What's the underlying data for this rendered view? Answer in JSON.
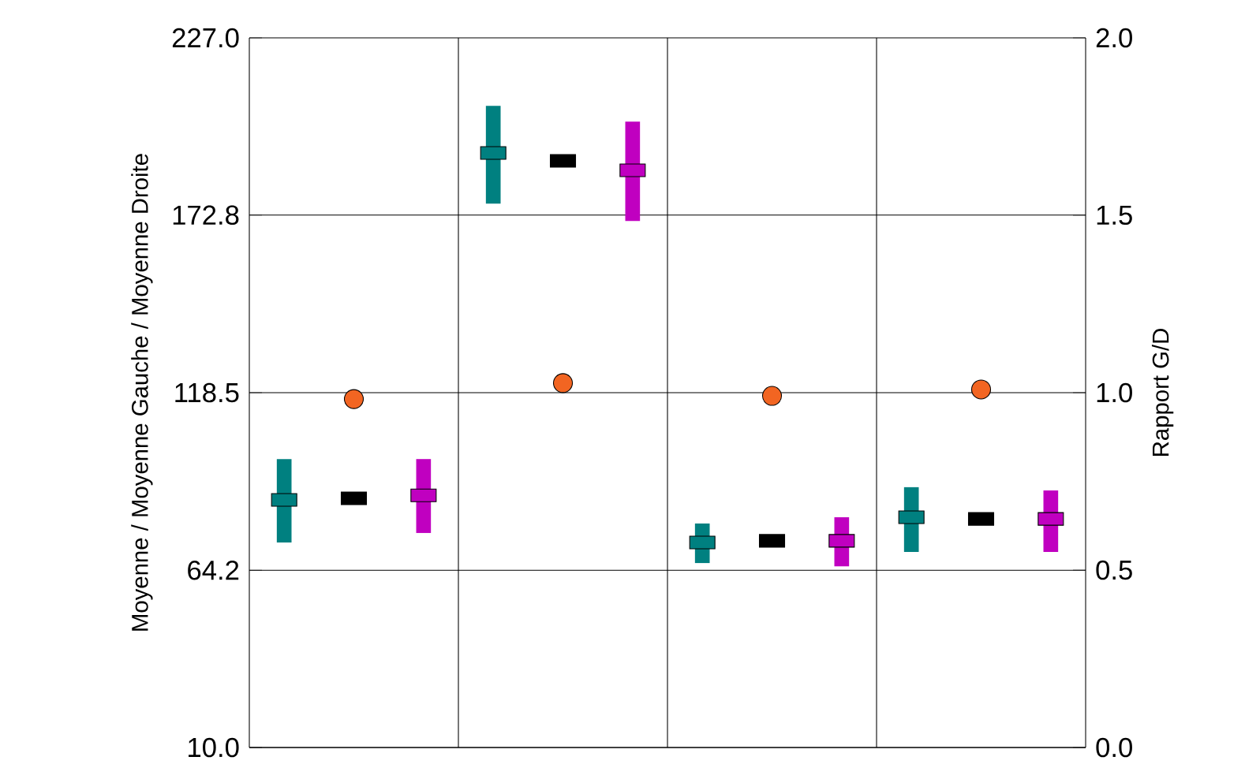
{
  "chart_data": {
    "type": "scatter",
    "ylabel": "Moyenne / Moyenne Gauche / Moyenne Droite",
    "y2label": "Rapport G/D",
    "categories": [
      null,
      null,
      null,
      null,
      null,
      null,
      null,
      null,
      null,
      null,
      null,
      null
    ],
    "ylim": [
      10,
      227
    ],
    "yticks": [
      {
        "value": 10,
        "label": "10.0"
      },
      64.2,
      118.5,
      172.8,
      {
        "value": 227,
        "label": "227.0"
      }
    ],
    "y2lim": [
      0,
      2
    ],
    "y2ticks": [
      {
        "value": 0,
        "label": "0.0"
      },
      0.5,
      {
        "value": 1,
        "label": "1.0"
      },
      1.5,
      {
        "value": 2,
        "label": "2.0"
      }
    ],
    "grid": true,
    "series": [
      {
        "color": "#008080",
        "marker": "square",
        "values": [
          85.7,
          null,
          null,
          191.8,
          null,
          null,
          72.7,
          null,
          null,
          80.4,
          null,
          null
        ],
        "errors": [
          [
            72.7,
            98.2
          ],
          null,
          null,
          [
            176.3,
            206.2
          ],
          null,
          null,
          [
            66.4,
            78.5
          ],
          null,
          null,
          [
            69.8,
            89.6
          ],
          null,
          null
        ]
      },
      {
        "color": "#000000",
        "marker": "square",
        "values": [
          null,
          86.2,
          null,
          null,
          189.4,
          null,
          null,
          73.2,
          null,
          null,
          79.9,
          null
        ]
      },
      {
        "color": "#c000c0",
        "marker": "square",
        "values": [
          null,
          null,
          87.1,
          null,
          null,
          186.5,
          null,
          null,
          73.2,
          null,
          null,
          79.9
        ],
        "errors": [
          null,
          null,
          [
            75.6,
            98.2
          ],
          null,
          null,
          [
            171.0,
            201.4
          ],
          null,
          null,
          [
            65.4,
            80.4
          ],
          null,
          null,
          [
            69.8,
            88.6
          ]
        ]
      },
      {
        "color": "#f26522",
        "marker": "circle",
        "axis": "y2",
        "values": [
          null,
          0.982,
          null,
          null,
          1.027,
          null,
          null,
          0.991,
          null,
          null,
          1.009,
          null
        ]
      }
    ]
  }
}
